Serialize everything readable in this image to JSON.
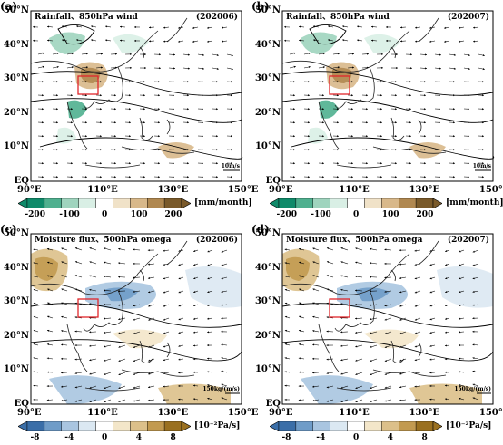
{
  "panels": [
    {
      "tag": "(a)",
      "title": "Rainfall、850hPa wind",
      "period": "(202006)",
      "ref_vector": "10m/s",
      "field": "rain",
      "cbar": "rain"
    },
    {
      "tag": "(b)",
      "title": "Rainfall、850hPa wind",
      "period": "(202007)",
      "ref_vector": "10m/s",
      "field": "rain",
      "cbar": "rain"
    },
    {
      "tag": "(c)",
      "title": "Moisture flux、500hPa omega",
      "period": "(202006)",
      "ref_vector": "150kg/(m/s)",
      "field": "omega",
      "cbar": "omega"
    },
    {
      "tag": "(d)",
      "title": "Moisture flux、500hPa omega",
      "period": "(202007)",
      "ref_vector": "150kg/(m/s)",
      "field": "omega",
      "cbar": "omega"
    }
  ],
  "lat_labels": [
    "50°N",
    "40°N",
    "30°N",
    "20°N",
    "10°N",
    "EQ"
  ],
  "lon_labels": [
    "90°E",
    "110°E",
    "130°E",
    "150°E"
  ],
  "colorbars": {
    "rain": {
      "ticks": [
        "-200",
        "-100",
        "0",
        "100",
        "200"
      ],
      "unit": "[mm/month]",
      "colors": [
        "#0f8a6a",
        "#4fb08f",
        "#9fd4be",
        "#d9efe5",
        "#ffffff",
        "#f0e2c8",
        "#d8b88a",
        "#b08850",
        "#7a5a2a"
      ]
    },
    "omega": {
      "ticks": [
        "-8",
        "-4",
        "0",
        "4",
        "8"
      ],
      "unit": "[10⁻²Pa/s]",
      "colors": [
        "#3a6ea8",
        "#6f9cc8",
        "#a9c5e0",
        "#dbe8f2",
        "#ffffff",
        "#f3e6c9",
        "#dcc08a",
        "#c29a50",
        "#9a7020"
      ]
    }
  },
  "colors": {
    "box": "#e0262b",
    "land_line": "#222222"
  }
}
